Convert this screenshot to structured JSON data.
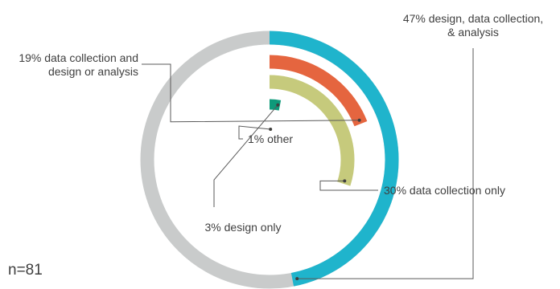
{
  "chart_data": {
    "type": "radial-bar",
    "total": 100,
    "sample_note": "n=81",
    "series": [
      {
        "name": "design, data collection, & analysis",
        "value": 47,
        "label_lines": [
          "47% design, data collection,",
          "& analysis"
        ],
        "color": "#1fb4cc"
      },
      {
        "name": "data collection and design or analysis",
        "value": 19,
        "label_lines": [
          "19% data collection and",
          "design or analysis"
        ],
        "color": "#e5653f"
      },
      {
        "name": "data collection only",
        "value": 30,
        "label_lines": [
          "30% data collection only"
        ],
        "color": "#c6ca7c"
      },
      {
        "name": "design only",
        "value": 3,
        "label_lines": [
          "3% design only"
        ],
        "color": "#0e9a7a"
      },
      {
        "name": "other",
        "value": 1,
        "label_lines": [
          "1% other"
        ],
        "color": "#f2b531"
      }
    ],
    "track_color": "#c9cbcb"
  }
}
